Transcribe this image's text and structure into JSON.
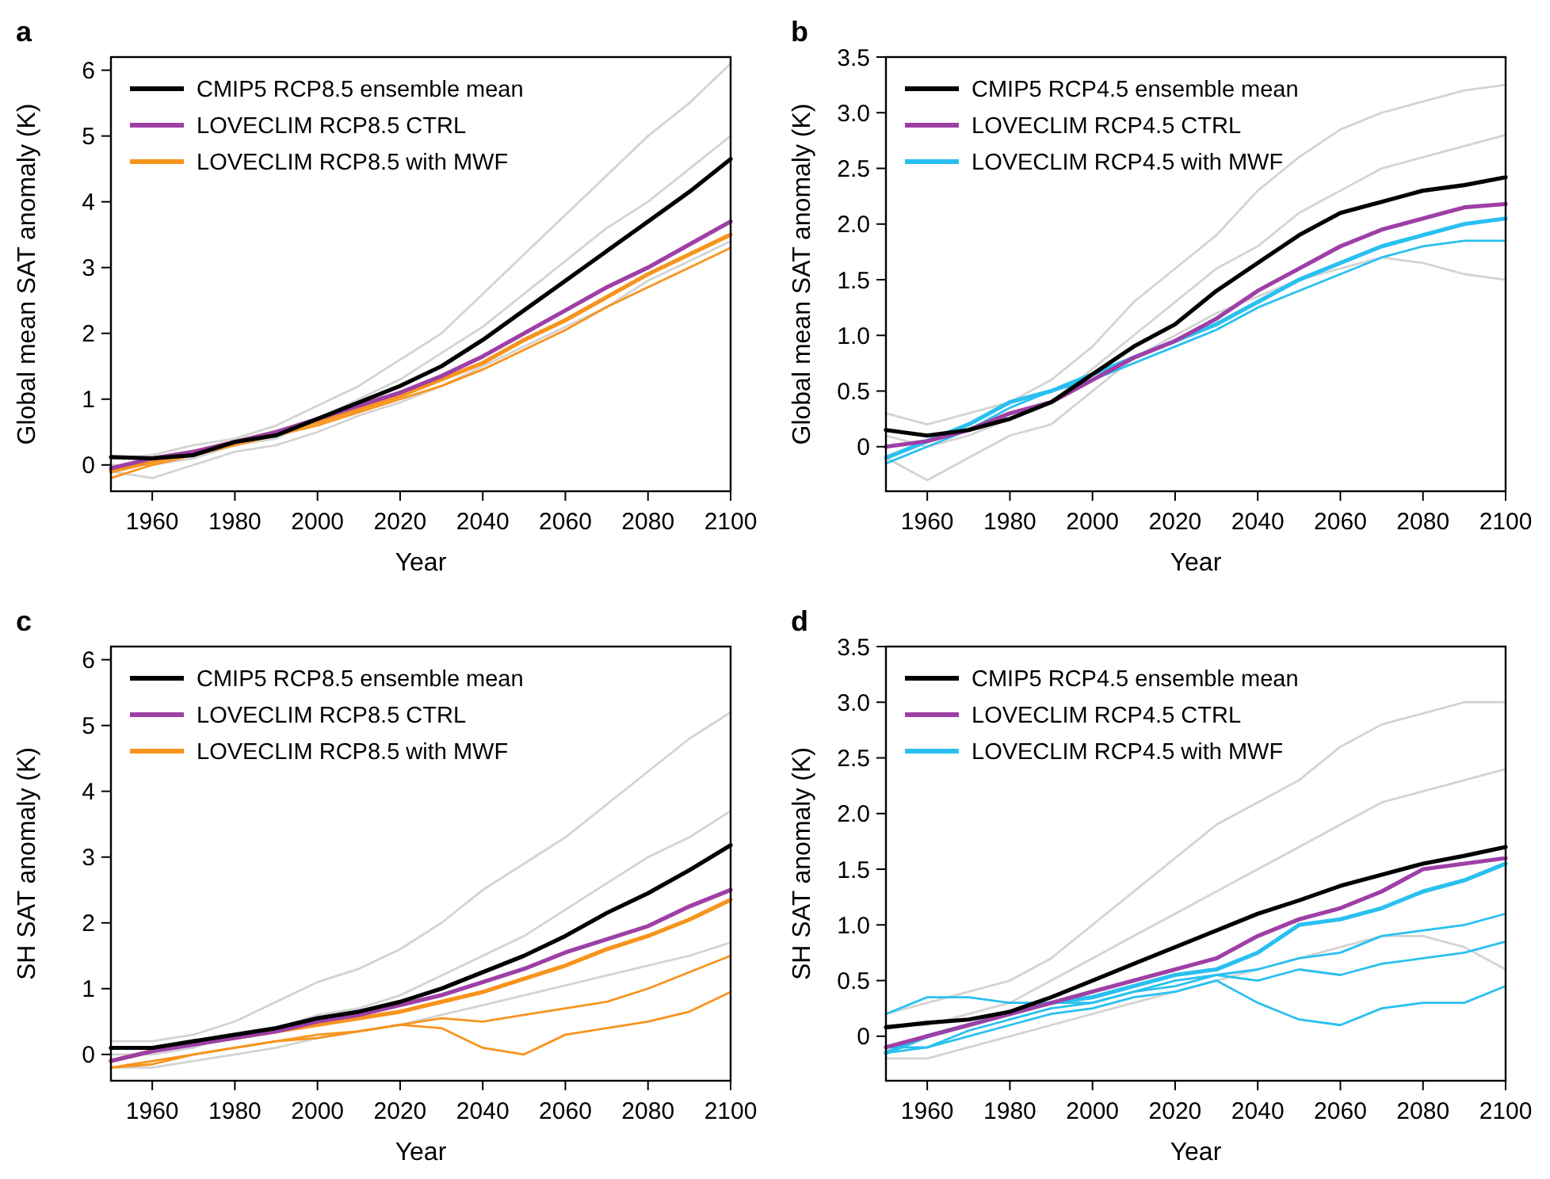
{
  "chart_data": [
    {
      "type": "line",
      "title": "a",
      "xlabel": "Year",
      "ylabel": "Global mean SAT anomaly (K)",
      "x": [
        1950,
        1960,
        1970,
        1980,
        1990,
        2000,
        2010,
        2020,
        2030,
        2040,
        2050,
        2060,
        2070,
        2080,
        2090,
        2100
      ],
      "xlim": [
        1950,
        2100
      ],
      "xticks": [
        1960,
        1980,
        2000,
        2020,
        2040,
        2060,
        2080,
        2100
      ],
      "ylim": [
        -0.4,
        6.2
      ],
      "yticks": [
        0,
        1,
        2,
        3,
        4,
        5,
        6
      ],
      "legend": "top left",
      "grid": false,
      "series": [
        {
          "name": "CMIP5 RCP8.5 ensemble mean",
          "color": "#000000",
          "values": [
            0.12,
            0.1,
            0.15,
            0.35,
            0.45,
            0.7,
            0.95,
            1.2,
            1.5,
            1.9,
            2.35,
            2.8,
            3.25,
            3.7,
            4.15,
            4.65
          ]
        },
        {
          "name": "LOVECLIM RCP8.5 CTRL",
          "color": "#9e3fa6",
          "values": [
            -0.05,
            0.1,
            0.2,
            0.35,
            0.5,
            0.7,
            0.9,
            1.1,
            1.35,
            1.65,
            2.0,
            2.35,
            2.7,
            3.0,
            3.35,
            3.7
          ]
        },
        {
          "name": "LOVECLIM RCP8.5 with MWF",
          "color": "#f7941d",
          "values": [
            -0.1,
            0.05,
            0.2,
            0.35,
            0.5,
            0.65,
            0.85,
            1.05,
            1.3,
            1.55,
            1.9,
            2.2,
            2.55,
            2.9,
            3.2,
            3.5
          ]
        },
        {
          "color": "#f7941d",
          "values": [
            -0.2,
            0.0,
            0.15,
            0.3,
            0.45,
            0.6,
            0.8,
            1.0,
            1.2,
            1.45,
            1.75,
            2.05,
            2.4,
            2.7,
            3.0,
            3.3
          ]
        },
        {
          "color": "#d3d3d3",
          "values": [
            0.1,
            0.15,
            0.3,
            0.4,
            0.6,
            0.9,
            1.2,
            1.6,
            2.0,
            2.6,
            3.2,
            3.8,
            4.4,
            5.0,
            5.5,
            6.1
          ]
        },
        {
          "color": "#d3d3d3",
          "values": [
            0.0,
            0.0,
            0.1,
            0.3,
            0.4,
            0.7,
            1.0,
            1.3,
            1.7,
            2.1,
            2.6,
            3.1,
            3.6,
            4.0,
            4.5,
            5.0
          ]
        },
        {
          "color": "#d3d3d3",
          "values": [
            -0.1,
            -0.2,
            0.0,
            0.2,
            0.3,
            0.5,
            0.75,
            0.95,
            1.2,
            1.5,
            1.8,
            2.1,
            2.4,
            2.8,
            3.1,
            3.4
          ]
        }
      ]
    },
    {
      "type": "line",
      "title": "b",
      "xlabel": "Year",
      "ylabel": "Global mean SAT anomaly (K)",
      "x": [
        1950,
        1960,
        1970,
        1980,
        1990,
        2000,
        2010,
        2020,
        2030,
        2040,
        2050,
        2060,
        2070,
        2080,
        2090,
        2100
      ],
      "xlim": [
        1950,
        2100
      ],
      "xticks": [
        1960,
        1980,
        2000,
        2020,
        2040,
        2060,
        2080,
        2100
      ],
      "ylim": [
        -0.4,
        3.5
      ],
      "yticks": [
        0,
        0.5,
        {
          "value": 1,
          "label": "1.0"
        },
        1.5,
        {
          "value": 2,
          "label": "2.0"
        },
        2.5,
        {
          "value": 3,
          "label": "3.0"
        },
        3.5
      ],
      "legend": "top left",
      "grid": false,
      "series": [
        {
          "name": "CMIP5 RCP4.5 ensemble mean",
          "color": "#000000",
          "values": [
            0.15,
            0.1,
            0.15,
            0.25,
            0.4,
            0.65,
            0.9,
            1.1,
            1.4,
            1.65,
            1.9,
            2.1,
            2.2,
            2.3,
            2.35,
            2.42
          ]
        },
        {
          "name": "LOVECLIM RCP4.5 CTRL",
          "color": "#9e3fa6",
          "values": [
            0,
            0.05,
            0.15,
            0.3,
            0.4,
            0.6,
            0.8,
            0.95,
            1.15,
            1.4,
            1.6,
            1.8,
            1.95,
            2.05,
            2.15,
            2.18
          ]
        },
        {
          "name": "LOVECLIM RCP4.5 with MWF",
          "color": "#29c0f0",
          "values": [
            -0.1,
            0.05,
            0.2,
            0.4,
            0.5,
            0.65,
            0.8,
            0.95,
            1.1,
            1.3,
            1.5,
            1.65,
            1.8,
            1.9,
            2.0,
            2.05
          ]
        },
        {
          "color": "#29c0f0",
          "values": [
            -0.15,
            0.0,
            0.15,
            0.35,
            0.5,
            0.6,
            0.75,
            0.9,
            1.05,
            1.25,
            1.4,
            1.55,
            1.7,
            1.8,
            1.85,
            1.85
          ]
        },
        {
          "color": "#d3d3d3",
          "values": [
            0.3,
            0.2,
            0.3,
            0.4,
            0.6,
            0.9,
            1.3,
            1.6,
            1.9,
            2.3,
            2.6,
            2.85,
            3.0,
            3.1,
            3.2,
            3.25
          ]
        },
        {
          "color": "#d3d3d3",
          "values": [
            0.1,
            0.0,
            0.1,
            0.25,
            0.4,
            0.7,
            1.0,
            1.3,
            1.6,
            1.8,
            2.1,
            2.3,
            2.5,
            2.6,
            2.7,
            2.8
          ]
        },
        {
          "color": "#d3d3d3",
          "values": [
            -0.1,
            -0.3,
            -0.1,
            0.1,
            0.2,
            0.5,
            0.8,
            1.0,
            1.2,
            1.35,
            1.5,
            1.6,
            1.7,
            1.65,
            1.55,
            1.5
          ]
        }
      ]
    },
    {
      "type": "line",
      "title": "c",
      "xlabel": "Year",
      "ylabel": "SH SAT anomaly (K)",
      "x": [
        1950,
        1960,
        1970,
        1980,
        1990,
        2000,
        2010,
        2020,
        2030,
        2040,
        2050,
        2060,
        2070,
        2080,
        2090,
        2100
      ],
      "xlim": [
        1950,
        2100
      ],
      "xticks": [
        1960,
        1980,
        2000,
        2020,
        2040,
        2060,
        2080,
        2100
      ],
      "ylim": [
        -0.4,
        6.2
      ],
      "yticks": [
        0,
        1,
        2,
        3,
        4,
        5,
        6
      ],
      "legend": "top left",
      "grid": false,
      "series": [
        {
          "name": "CMIP5 RCP8.5 ensemble mean",
          "color": "#000000",
          "values": [
            0.1,
            0.1,
            0.2,
            0.3,
            0.4,
            0.55,
            0.65,
            0.8,
            1.0,
            1.25,
            1.5,
            1.8,
            2.15,
            2.45,
            2.8,
            3.18
          ]
        },
        {
          "name": "LOVECLIM RCP8.5 CTRL",
          "color": "#9e3fa6",
          "values": [
            -0.1,
            0.05,
            0.15,
            0.25,
            0.35,
            0.5,
            0.6,
            0.75,
            0.9,
            1.1,
            1.3,
            1.55,
            1.75,
            1.95,
            2.25,
            2.5
          ]
        },
        {
          "name": "LOVECLIM RCP8.5 with MWF",
          "color": "#f7941d",
          "values": [
            -0.1,
            0.05,
            0.2,
            0.25,
            0.35,
            0.45,
            0.55,
            0.65,
            0.8,
            0.95,
            1.15,
            1.35,
            1.6,
            1.8,
            2.05,
            2.35
          ]
        },
        {
          "color": "#f7941d",
          "values": [
            -0.2,
            -0.1,
            0.0,
            0.1,
            0.2,
            0.3,
            0.35,
            0.45,
            0.55,
            0.5,
            0.6,
            0.7,
            0.8,
            1.0,
            1.25,
            1.5
          ]
        },
        {
          "color": "#f7941d",
          "values": [
            -0.2,
            -0.15,
            0.0,
            0.1,
            0.2,
            0.25,
            0.35,
            0.45,
            0.4,
            0.1,
            0.0,
            0.3,
            0.4,
            0.5,
            0.65,
            0.95
          ]
        },
        {
          "color": "#d3d3d3",
          "values": [
            0.2,
            0.2,
            0.3,
            0.5,
            0.8,
            1.1,
            1.3,
            1.6,
            2.0,
            2.5,
            2.9,
            3.3,
            3.8,
            4.3,
            4.8,
            5.2
          ]
        },
        {
          "color": "#d3d3d3",
          "values": [
            0.0,
            0.0,
            0.1,
            0.3,
            0.4,
            0.6,
            0.7,
            0.9,
            1.2,
            1.5,
            1.8,
            2.2,
            2.6,
            3.0,
            3.3,
            3.7
          ]
        },
        {
          "color": "#d3d3d3",
          "values": [
            -0.2,
            -0.2,
            -0.1,
            0.0,
            0.1,
            0.25,
            0.35,
            0.45,
            0.6,
            0.75,
            0.9,
            1.05,
            1.2,
            1.35,
            1.5,
            1.7
          ]
        }
      ]
    },
    {
      "type": "line",
      "title": "d",
      "xlabel": "Year",
      "ylabel": "SH SAT anomaly (K)",
      "x": [
        1950,
        1960,
        1970,
        1980,
        1990,
        2000,
        2010,
        2020,
        2030,
        2040,
        2050,
        2060,
        2070,
        2080,
        2090,
        2100
      ],
      "xlim": [
        1950,
        2100
      ],
      "xticks": [
        1960,
        1980,
        2000,
        2020,
        2040,
        2060,
        2080,
        2100
      ],
      "ylim": [
        -0.4,
        3.5
      ],
      "yticks": [
        0,
        0.5,
        {
          "value": 1,
          "label": "1.0"
        },
        1.5,
        {
          "value": 2,
          "label": "2.0"
        },
        2.5,
        {
          "value": 3,
          "label": "3.0"
        },
        3.5
      ],
      "legend": "top left",
      "grid": false,
      "series": [
        {
          "name": "CMIP5 RCP4.5 ensemble mean",
          "color": "#000000",
          "values": [
            0.08,
            0.12,
            0.15,
            0.22,
            0.35,
            0.5,
            0.65,
            0.8,
            0.95,
            1.1,
            1.22,
            1.35,
            1.45,
            1.55,
            1.62,
            1.7
          ]
        },
        {
          "name": "LOVECLIM RCP4.5 CTRL",
          "color": "#9e3fa6",
          "values": [
            -0.1,
            0.0,
            0.1,
            0.2,
            0.3,
            0.4,
            0.5,
            0.6,
            0.7,
            0.9,
            1.05,
            1.15,
            1.3,
            1.5,
            1.55,
            1.6
          ]
        },
        {
          "name": "LOVECLIM RCP4.5 with MWF",
          "color": "#29c0f0",
          "values": [
            -0.15,
            0.0,
            0.1,
            0.2,
            0.3,
            0.35,
            0.45,
            0.55,
            0.6,
            0.75,
            1.0,
            1.05,
            1.15,
            1.3,
            1.4,
            1.55
          ]
        },
        {
          "color": "#29c0f0",
          "values": [
            -0.1,
            -0.1,
            0.05,
            0.15,
            0.25,
            0.3,
            0.4,
            0.5,
            0.55,
            0.6,
            0.7,
            0.75,
            0.9,
            0.95,
            1.0,
            1.1
          ]
        },
        {
          "color": "#29c0f0",
          "values": [
            0.2,
            0.35,
            0.35,
            0.3,
            0.3,
            0.3,
            0.4,
            0.45,
            0.55,
            0.5,
            0.6,
            0.55,
            0.65,
            0.7,
            0.75,
            0.85
          ]
        },
        {
          "color": "#29c0f0",
          "values": [
            -0.15,
            -0.1,
            0.0,
            0.1,
            0.2,
            0.25,
            0.35,
            0.4,
            0.5,
            0.3,
            0.15,
            0.1,
            0.25,
            0.3,
            0.3,
            0.45
          ]
        },
        {
          "color": "#d3d3d3",
          "values": [
            0.2,
            0.3,
            0.4,
            0.5,
            0.7,
            1.0,
            1.3,
            1.6,
            1.9,
            2.1,
            2.3,
            2.6,
            2.8,
            2.9,
            3.0,
            3.0
          ]
        },
        {
          "color": "#d3d3d3",
          "values": [
            0.1,
            0.1,
            0.2,
            0.3,
            0.5,
            0.7,
            0.9,
            1.1,
            1.3,
            1.5,
            1.7,
            1.9,
            2.1,
            2.2,
            2.3,
            2.4
          ]
        },
        {
          "color": "#d3d3d3",
          "values": [
            -0.2,
            -0.2,
            -0.1,
            0.0,
            0.1,
            0.2,
            0.3,
            0.4,
            0.5,
            0.6,
            0.7,
            0.8,
            0.9,
            0.9,
            0.8,
            0.6
          ]
        }
      ]
    }
  ]
}
